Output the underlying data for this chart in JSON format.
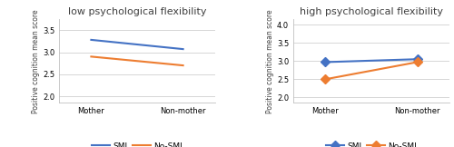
{
  "left": {
    "title": "low psychological flexibility",
    "x_labels": [
      "Mother",
      "Non-mother"
    ],
    "smi": [
      3.28,
      3.07
    ],
    "nosmi": [
      2.9,
      2.7
    ],
    "ylim": [
      1.85,
      3.75
    ],
    "yticks": [
      2,
      2.5,
      3,
      3.5
    ]
  },
  "right": {
    "title": "high psychological flexibility",
    "x_labels": [
      "Mother",
      "Non-mother"
    ],
    "smi": [
      2.97,
      3.05
    ],
    "nosmi": [
      2.5,
      2.97
    ],
    "ylim": [
      1.85,
      4.15
    ],
    "yticks": [
      2,
      2.5,
      3,
      3.5,
      4
    ]
  },
  "smi_color": "#4472C4",
  "nosmi_color": "#ED7D31",
  "ylabel": "Positive cognition mean score",
  "legend_smi": "SMI",
  "legend_nosmi": "No-SMI",
  "linewidth": 1.5,
  "markersize": 5,
  "title_fontsize": 8,
  "axis_fontsize": 6,
  "ylabel_fontsize": 5.5,
  "legend_fontsize": 6.5
}
